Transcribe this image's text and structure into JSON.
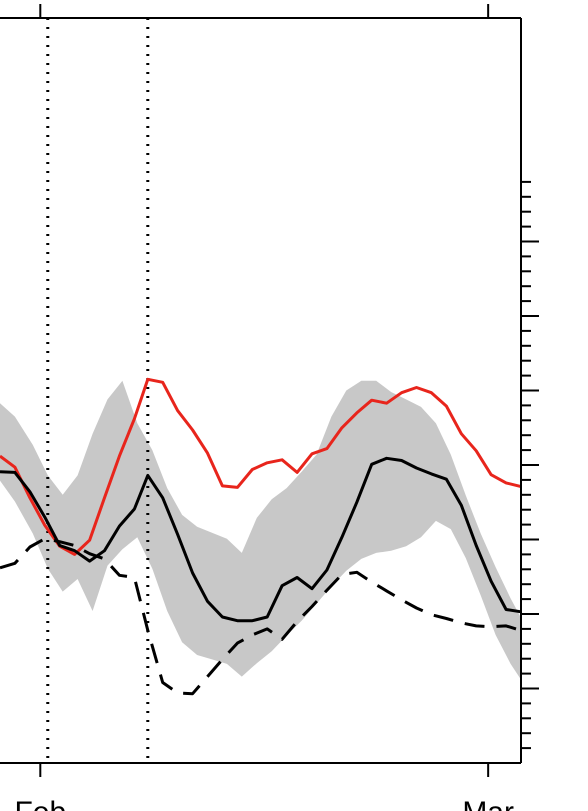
{
  "chart_data": {
    "type": "line",
    "title": "",
    "xlabel": "",
    "ylabel": "",
    "x_tick_labels": [
      "Feb",
      "Mar"
    ],
    "x_ticks": [
      0,
      30
    ],
    "xlim": [
      -2.7,
      32.2
    ],
    "ylim": [
      0,
      100
    ],
    "y_major_ticks": [
      10,
      20,
      30,
      40,
      50,
      60,
      70
    ],
    "y_minor_ticks": [
      2,
      4,
      6,
      8,
      12,
      14,
      16,
      18,
      22,
      24,
      26,
      28,
      32,
      34,
      36,
      38,
      42,
      44,
      46,
      48,
      52,
      54,
      56,
      58,
      62,
      64,
      66,
      68,
      72,
      74,
      76,
      78
    ],
    "reference_lines": [
      {
        "x": 0.5,
        "style": "dotted"
      },
      {
        "x": 7.2,
        "style": "dotted"
      }
    ],
    "band": {
      "color": "#c8c8c8",
      "x": [
        -2.7,
        -1.7,
        -0.5,
        0.5,
        1.5,
        2.5,
        3.5,
        4.5,
        5.5,
        6.5,
        7.5,
        8.5,
        9.5,
        10.5,
        11.5,
        12.5,
        13.5,
        14.5,
        15.5,
        16.5,
        17.5,
        18.5,
        19.5,
        20.5,
        21.5,
        22.5,
        23.5,
        24.5,
        25.5,
        26.5,
        27.5,
        28.5,
        29.5,
        30.5,
        31.5,
        32.2
      ],
      "upper": [
        48.3,
        46.5,
        42.7,
        38.6,
        36.0,
        38.6,
        44.2,
        48.8,
        51.3,
        45.6,
        42.0,
        36.9,
        33.3,
        31.7,
        30.9,
        30.1,
        28.2,
        32.9,
        35.4,
        36.9,
        39.1,
        41.4,
        46.5,
        50.0,
        51.3,
        51.3,
        49.8,
        48.8,
        47.8,
        45.6,
        41.4,
        35.9,
        30.8,
        26.3,
        22.1,
        19.5
      ],
      "lower": [
        37.9,
        35.1,
        30.8,
        26.1,
        23.0,
        24.7,
        20.4,
        26.5,
        28.7,
        30.3,
        26.1,
        20.4,
        16.2,
        14.5,
        13.9,
        13.3,
        11.6,
        13.4,
        15.0,
        17.1,
        19.1,
        21.4,
        23.7,
        25.8,
        27.4,
        28.2,
        28.5,
        29.1,
        30.3,
        32.5,
        31.4,
        27.5,
        22.5,
        17.2,
        13.3,
        11.2
      ]
    },
    "series": [
      {
        "color": "#e8251c",
        "style": "solid",
        "x": [
          -2.7,
          -1.7,
          -0.7,
          0.3,
          1.3,
          2.3,
          3.3,
          4.3,
          5.3,
          6.3,
          7.2,
          8.2,
          9.2,
          10.2,
          11.2,
          12.2,
          13.2,
          14.2,
          15.2,
          16.2,
          17.2,
          18.2,
          19.2,
          20.2,
          21.2,
          22.2,
          23.2,
          24.2,
          25.2,
          26.2,
          27.2,
          28.2,
          29.2,
          30.2,
          31.2,
          32.2
        ],
        "y": [
          41.2,
          39.7,
          35.6,
          31.9,
          29.1,
          28.0,
          29.9,
          35.6,
          41.2,
          46.2,
          51.5,
          51.1,
          47.3,
          44.7,
          41.6,
          37.2,
          37.0,
          39.4,
          40.3,
          40.7,
          39.0,
          41.5,
          42.2,
          45.0,
          47.0,
          48.7,
          48.3,
          49.7,
          50.4,
          49.7,
          47.9,
          44.2,
          41.9,
          38.7,
          37.6,
          37.1
        ]
      },
      {
        "color": "#000000",
        "style": "solid",
        "x": [
          -2.7,
          -1.7,
          -0.7,
          0.3,
          1.3,
          2.3,
          3.3,
          4.3,
          5.3,
          6.3,
          7.2,
          8.2,
          9.2,
          10.2,
          11.2,
          12.2,
          13.2,
          14.2,
          15.2,
          16.2,
          17.2,
          18.2,
          19.2,
          20.2,
          21.2,
          22.2,
          23.2,
          24.2,
          25.2,
          26.2,
          27.2,
          28.2,
          29.2,
          30.2,
          31.2,
          32.2
        ],
        "y": [
          39.1,
          39.0,
          36.4,
          33.0,
          29.2,
          28.5,
          27.1,
          28.5,
          31.8,
          34.1,
          38.6,
          35.6,
          30.7,
          25.5,
          21.7,
          19.6,
          19.1,
          19.1,
          19.6,
          23.8,
          24.9,
          23.4,
          25.9,
          30.3,
          35.0,
          40.1,
          40.9,
          40.6,
          39.6,
          38.8,
          38.1,
          34.6,
          29.2,
          24.4,
          20.6,
          20.3
        ]
      },
      {
        "color": "#000000",
        "style": "dashed",
        "x": [
          -2.7,
          -1.7,
          -0.7,
          0.3,
          1.3,
          2.3,
          3.3,
          4.3,
          5.3,
          6.3,
          7.2,
          8.2,
          9.2,
          10.2,
          11.2,
          12.2,
          13.2,
          14.2,
          15.2,
          16.2,
          17.2,
          18.2,
          19.2,
          20.2,
          21.2,
          22.2,
          23.2,
          24.2,
          25.2,
          26.2,
          27.2,
          28.2,
          29.2,
          30.2,
          31.2,
          32.2
        ],
        "y": [
          26.2,
          26.8,
          29.0,
          30.1,
          29.7,
          29.2,
          28.1,
          27.4,
          25.2,
          24.9,
          17.8,
          10.8,
          9.4,
          9.3,
          11.6,
          13.9,
          16.1,
          17.2,
          18.0,
          16.6,
          19.0,
          21.0,
          23.2,
          25.3,
          25.6,
          24.3,
          23.1,
          21.9,
          20.8,
          19.9,
          19.4,
          18.8,
          18.4,
          18.3,
          18.4,
          17.8
        ]
      }
    ]
  }
}
